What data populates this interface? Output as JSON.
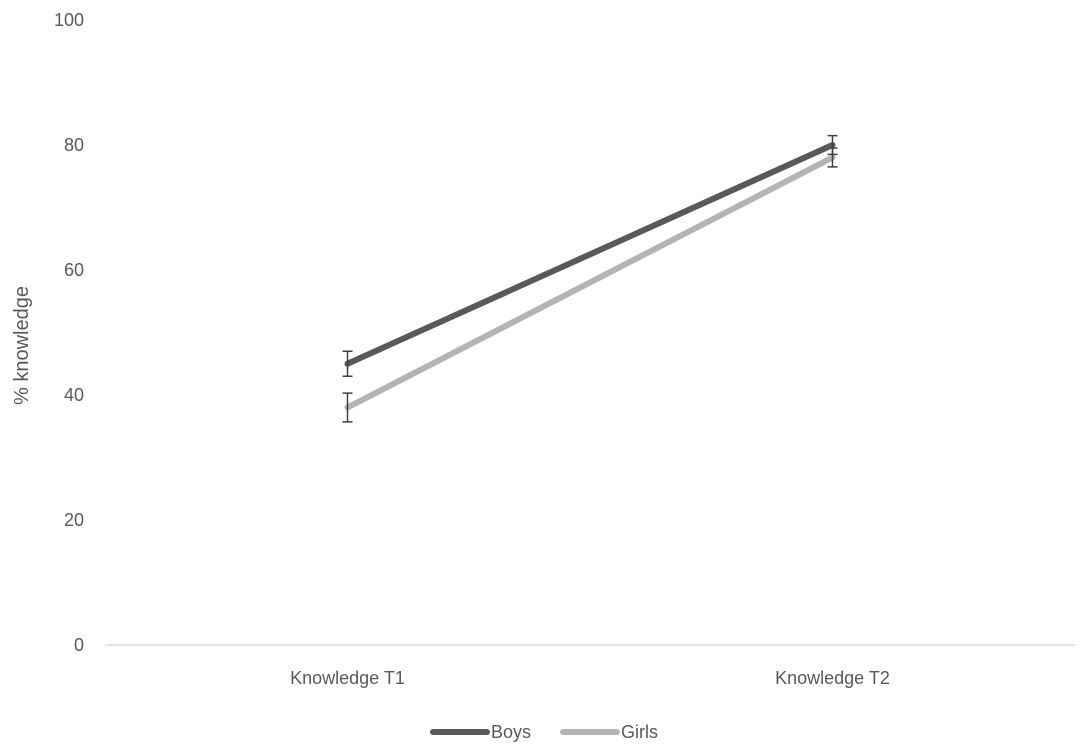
{
  "chart_data": {
    "type": "line",
    "title": "",
    "xlabel": "",
    "ylabel": "% knowledge",
    "categories": [
      "Knowledge T1",
      "Knowledge T2"
    ],
    "ylim": [
      0,
      100
    ],
    "yticks": [
      0,
      20,
      40,
      60,
      80,
      100
    ],
    "grid": false,
    "legend_position": "bottom",
    "series": [
      {
        "name": "Boys",
        "values": [
          45,
          80
        ],
        "error": [
          2,
          1.5
        ],
        "color": "#595959"
      },
      {
        "name": "Girls",
        "values": [
          38,
          78
        ],
        "error": [
          2.3,
          1.5
        ],
        "color": "#b4b4b4"
      }
    ]
  }
}
